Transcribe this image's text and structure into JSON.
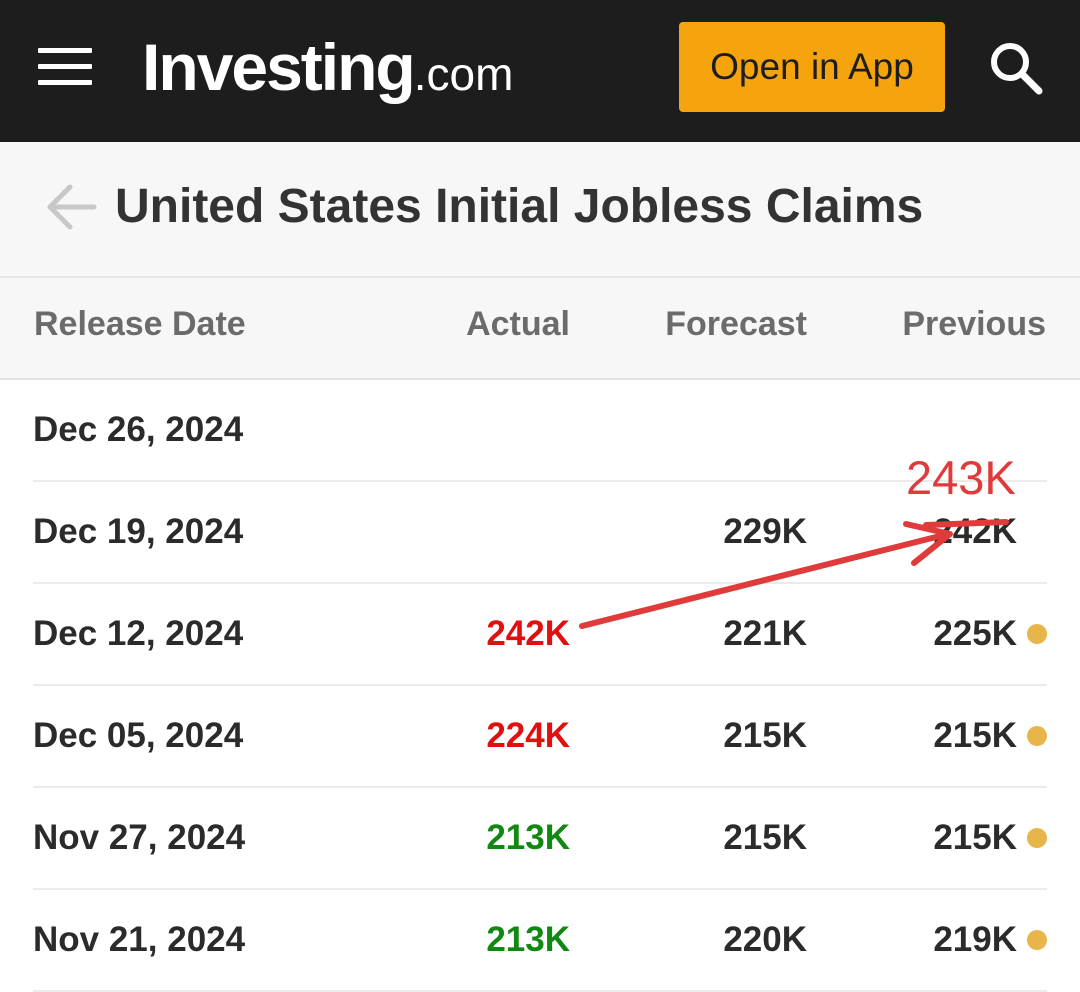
{
  "colors": {
    "topbar_bg": "#1d1d1d",
    "accent": "#f5a40d",
    "negative": "#e01010",
    "positive": "#118811",
    "dot": "#e8b54a",
    "annotation": "#e03a3a"
  },
  "header": {
    "menu_icon": "hamburger-menu-icon",
    "logo_main": "Investing",
    "logo_tld": ".com",
    "open_app_label": "Open in App",
    "search_icon": "search-icon"
  },
  "page": {
    "back_icon": "back-arrow-icon",
    "title": "United States Initial Jobless Claims"
  },
  "table": {
    "columns": [
      "Release Date",
      "Actual",
      "Forecast",
      "Previous"
    ],
    "rows": [
      {
        "date": "Dec 26, 2024",
        "actual": "",
        "actual_status": "",
        "forecast": "",
        "previous": "",
        "dot": false
      },
      {
        "date": "Dec 19, 2024",
        "actual": "",
        "actual_status": "",
        "forecast": "229K",
        "previous": "242K",
        "dot": false
      },
      {
        "date": "Dec 12, 2024",
        "actual": "242K",
        "actual_status": "negative",
        "forecast": "221K",
        "previous": "225K",
        "dot": true
      },
      {
        "date": "Dec 05, 2024",
        "actual": "224K",
        "actual_status": "negative",
        "forecast": "215K",
        "previous": "215K",
        "dot": true
      },
      {
        "date": "Nov 27, 2024",
        "actual": "213K",
        "actual_status": "positive",
        "forecast": "215K",
        "previous": "215K",
        "dot": true
      },
      {
        "date": "Nov 21, 2024",
        "actual": "213K",
        "actual_status": "positive",
        "forecast": "220K",
        "previous": "219K",
        "dot": true
      }
    ]
  },
  "annotation": {
    "corrected_value": "243K"
  }
}
